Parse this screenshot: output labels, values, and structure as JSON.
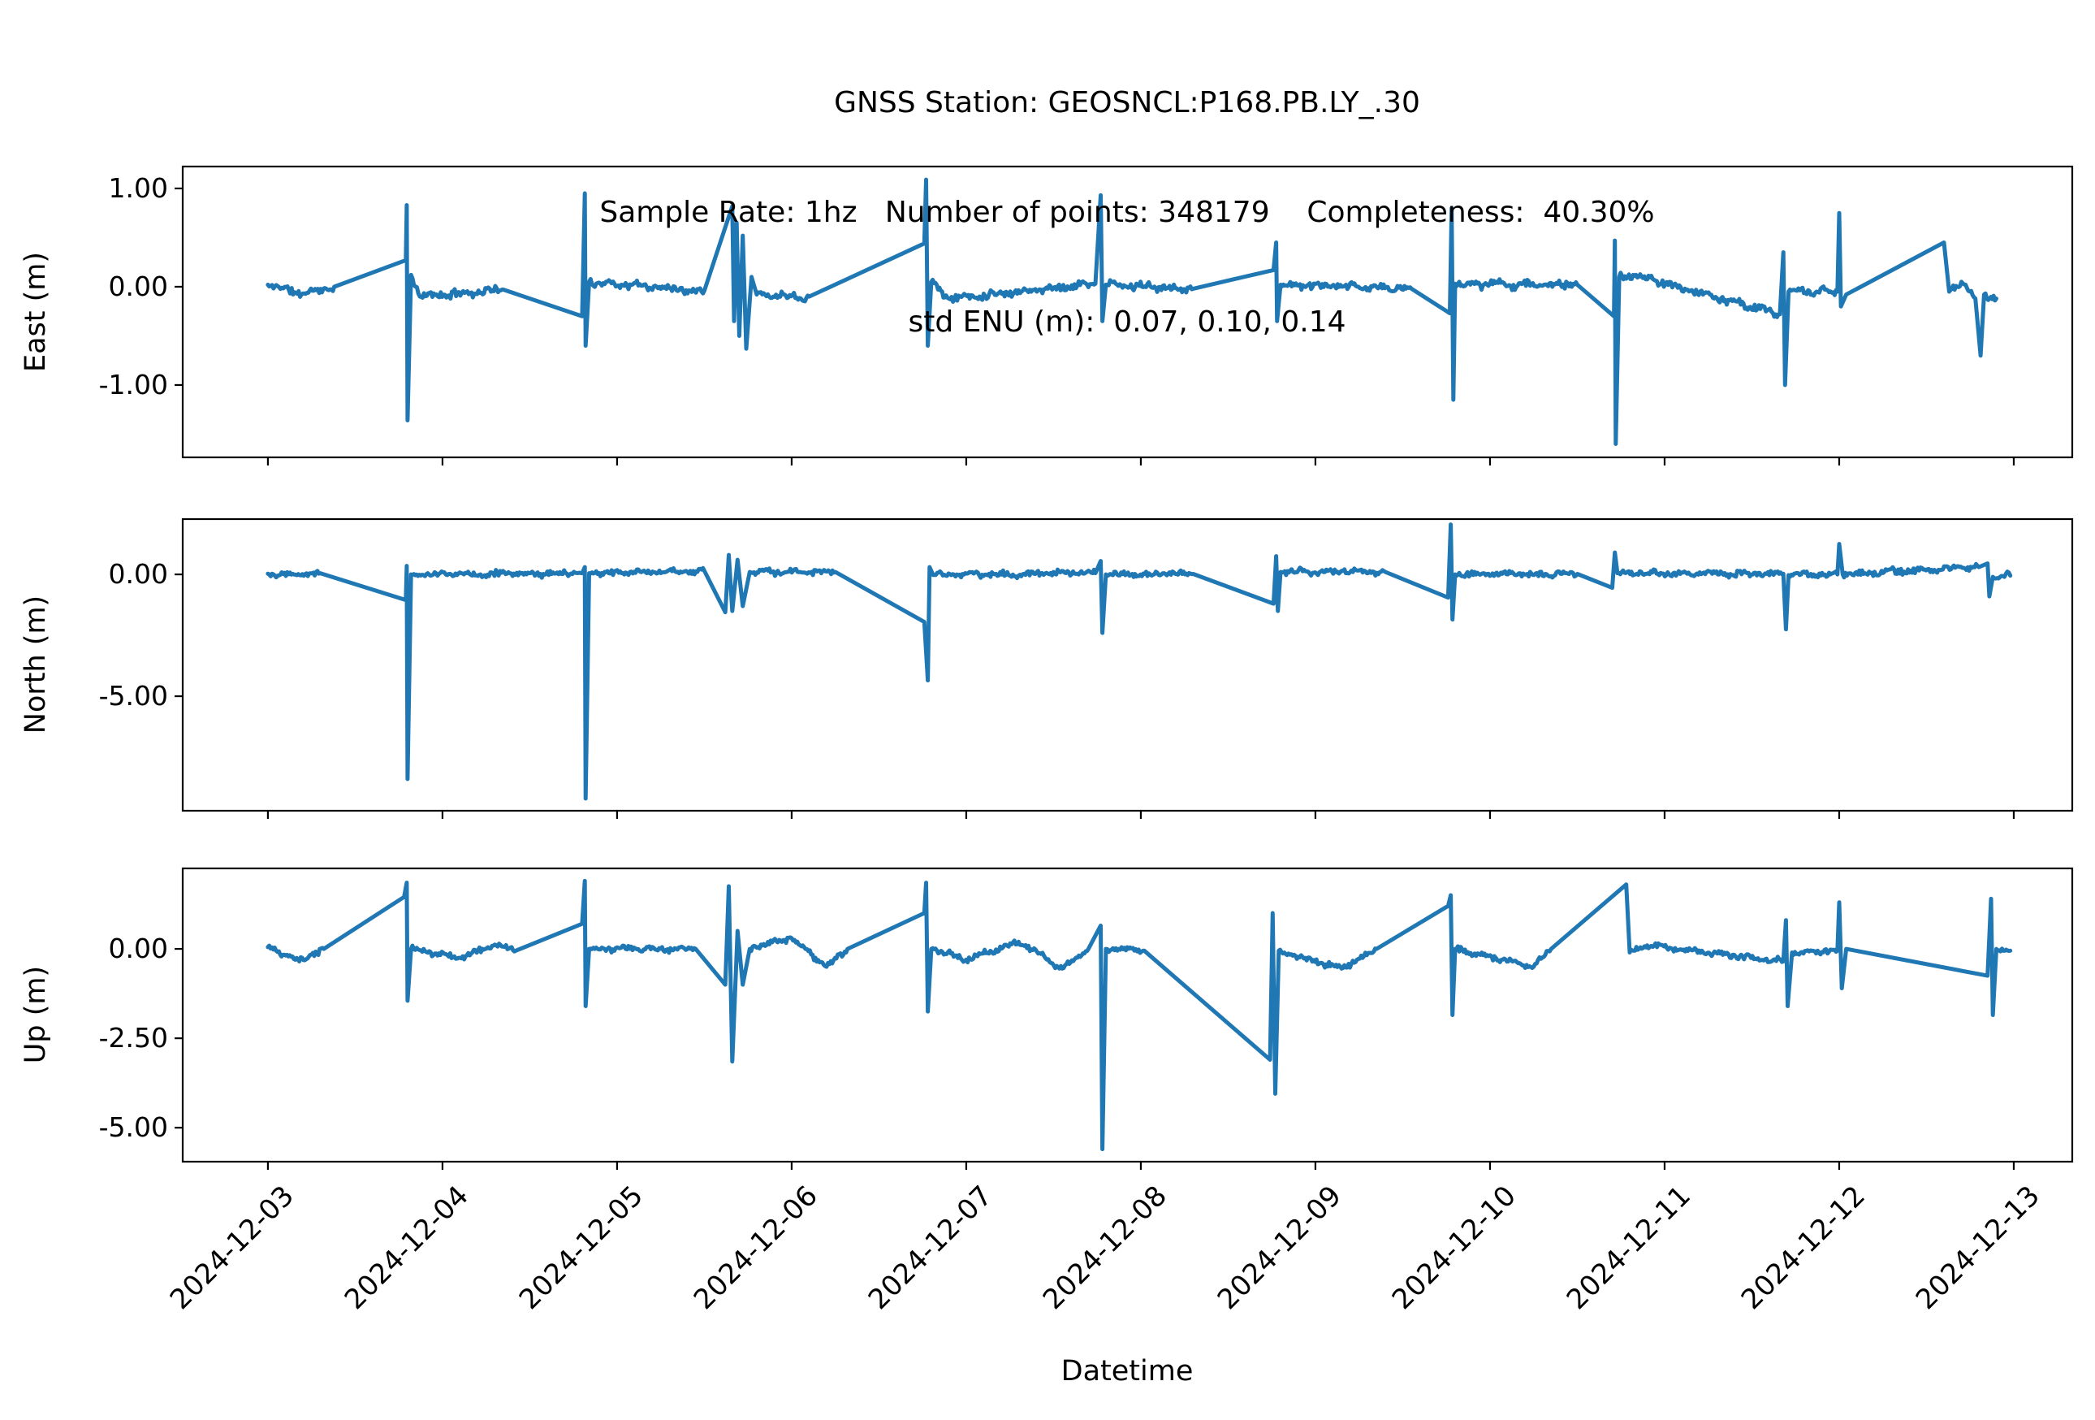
{
  "title": {
    "line1": "GNSS Station: GEOSNCL:P168.PB.LY_.30",
    "line2": "Sample Rate: 1hz   Number of points: 348179    Completeness:  40.30%",
    "line3": "std ENU (m):  0.07, 0.10, 0.14"
  },
  "xaxis": {
    "label": "Datetime"
  },
  "colors": {
    "line": "#1f77b4",
    "text": "#000000",
    "background": "#ffffff"
  },
  "chart_data": {
    "type": "line",
    "station": "GEOSNCL:P168.PB.LY_.30",
    "sample_rate": "1hz",
    "number_of_points": 348179,
    "completeness_percent": 40.3,
    "std_enu_m": [
      0.07,
      0.1,
      0.14
    ],
    "x_unit": "days since 2024-12-03 00:00",
    "xlim_days": [
      -0.488,
      10.335
    ],
    "x_tick_positions_days": [
      0,
      1,
      2,
      3,
      4,
      5,
      6,
      7,
      8,
      9,
      10
    ],
    "x_tick_labels": [
      "2024-12-03",
      "2024-12-04",
      "2024-12-05",
      "2024-12-06",
      "2024-12-07",
      "2024-12-08",
      "2024-12-09",
      "2024-12-10",
      "2024-12-11",
      "2024-12-12",
      "2024-12-13"
    ],
    "grid": false,
    "legend": null,
    "subplots": [
      {
        "name": "East",
        "ylabel": "East (m)",
        "ylim": [
          -1.736,
          1.223
        ],
        "yticks": [
          {
            "value": 1.0,
            "label": "1.00"
          },
          {
            "value": 0.0,
            "label": "0.00"
          },
          {
            "value": -1.0,
            "label": "-1.00"
          }
        ],
        "noise_amp_m": 0.045,
        "seed": 11,
        "points_day_value": [
          [
            0.0,
            0.02
          ],
          [
            0.2,
            -0.07,
            1
          ],
          [
            0.38,
            0.0,
            1
          ],
          [
            0.79,
            0.27
          ],
          [
            0.795,
            0.83
          ],
          [
            0.8,
            -1.36
          ],
          [
            0.82,
            0.12
          ],
          [
            0.87,
            -0.1,
            1
          ],
          [
            1.35,
            -0.03,
            1
          ],
          [
            1.8,
            -0.3
          ],
          [
            1.815,
            0.95
          ],
          [
            1.82,
            -0.6
          ],
          [
            1.84,
            0.05
          ],
          [
            2.5,
            -0.04,
            1
          ],
          [
            2.66,
            0.82
          ],
          [
            2.67,
            -0.35
          ],
          [
            2.685,
            0.65
          ],
          [
            2.7,
            -0.5
          ],
          [
            2.72,
            0.52
          ],
          [
            2.74,
            -0.63
          ],
          [
            2.77,
            0.1
          ],
          [
            2.8,
            -0.08
          ],
          [
            3.1,
            -0.1,
            1
          ],
          [
            3.76,
            0.44
          ],
          [
            3.77,
            1.09
          ],
          [
            3.78,
            -0.6
          ],
          [
            3.8,
            0.05
          ],
          [
            3.9,
            -0.12,
            1
          ],
          [
            4.74,
            0.03,
            1
          ],
          [
            4.77,
            0.93
          ],
          [
            4.78,
            -0.35
          ],
          [
            4.8,
            0.02
          ],
          [
            5.3,
            -0.02,
            1
          ],
          [
            5.76,
            0.17
          ],
          [
            5.775,
            0.45
          ],
          [
            5.78,
            -0.35
          ],
          [
            5.8,
            0.02
          ],
          [
            6.55,
            -0.02,
            1
          ],
          [
            6.77,
            -0.27
          ],
          [
            6.78,
            0.8
          ],
          [
            6.79,
            -1.15
          ],
          [
            6.8,
            0.03
          ],
          [
            7.5,
            0.02,
            1
          ],
          [
            7.71,
            -0.3
          ],
          [
            7.715,
            0.47
          ],
          [
            7.72,
            -1.6
          ],
          [
            7.74,
            0.1
          ],
          [
            7.82,
            0.12,
            1
          ],
          [
            8.66,
            -0.28,
            1
          ],
          [
            8.68,
            0.35
          ],
          [
            8.69,
            -1.0
          ],
          [
            8.71,
            -0.05
          ],
          [
            8.99,
            -0.05,
            1
          ],
          [
            9.0,
            0.75
          ],
          [
            9.01,
            -0.2
          ],
          [
            9.04,
            -0.08
          ],
          [
            9.6,
            0.45
          ],
          [
            9.63,
            -0.05
          ],
          [
            9.7,
            0.05,
            1
          ],
          [
            9.78,
            -0.12,
            1
          ],
          [
            9.81,
            -0.7
          ],
          [
            9.83,
            -0.08
          ],
          [
            9.9,
            -0.12,
            1
          ]
        ]
      },
      {
        "name": "North",
        "ylabel": "North (m)",
        "ylim": [
          -9.7,
          2.27
        ],
        "yticks": [
          {
            "value": 0.0,
            "label": "0.00"
          },
          {
            "value": -5.0,
            "label": "-5.00"
          }
        ],
        "noise_amp_m": 0.14,
        "seed": 22,
        "points_day_value": [
          [
            0.0,
            0.03
          ],
          [
            0.3,
            0.05,
            1
          ],
          [
            0.79,
            -1.05
          ],
          [
            0.795,
            0.35
          ],
          [
            0.8,
            -8.4
          ],
          [
            0.82,
            0.0
          ],
          [
            1.8,
            0.05,
            1
          ],
          [
            1.815,
            0.3
          ],
          [
            1.82,
            -9.2
          ],
          [
            1.84,
            0.05
          ],
          [
            2.5,
            0.15,
            1
          ],
          [
            2.62,
            -1.55
          ],
          [
            2.64,
            0.8
          ],
          [
            2.66,
            -1.5
          ],
          [
            2.69,
            0.6
          ],
          [
            2.72,
            -1.3
          ],
          [
            2.76,
            0.1
          ],
          [
            3.25,
            0.1,
            1
          ],
          [
            3.76,
            -1.95
          ],
          [
            3.78,
            -4.35
          ],
          [
            3.79,
            0.3
          ],
          [
            3.81,
            -0.02
          ],
          [
            4.74,
            0.05,
            1
          ],
          [
            4.77,
            0.55
          ],
          [
            4.78,
            -2.4
          ],
          [
            4.8,
            0.0
          ],
          [
            5.3,
            0.02,
            1
          ],
          [
            5.76,
            -1.2
          ],
          [
            5.775,
            0.75
          ],
          [
            5.785,
            -1.5
          ],
          [
            5.8,
            0.1
          ],
          [
            6.15,
            0.15,
            1
          ],
          [
            6.4,
            0.1,
            1
          ],
          [
            6.76,
            -0.95
          ],
          [
            6.775,
            2.05
          ],
          [
            6.785,
            -1.85
          ],
          [
            6.8,
            0.0
          ],
          [
            7.5,
            0.02,
            1
          ],
          [
            7.7,
            -0.55
          ],
          [
            7.715,
            0.9
          ],
          [
            7.73,
            0.05
          ],
          [
            8.68,
            0.03,
            1
          ],
          [
            8.695,
            -2.25
          ],
          [
            8.71,
            -0.03
          ],
          [
            8.99,
            0.0,
            1
          ],
          [
            9.0,
            1.25
          ],
          [
            9.02,
            0.0
          ],
          [
            9.8,
            0.3,
            1
          ],
          [
            9.85,
            0.45
          ],
          [
            9.86,
            -0.9
          ],
          [
            9.88,
            -0.1
          ],
          [
            9.98,
            -0.05,
            1
          ]
        ]
      },
      {
        "name": "Up",
        "ylabel": "Up (m)",
        "ylim": [
          -5.95,
          2.25
        ],
        "yticks": [
          {
            "value": 0.0,
            "label": "0.00"
          },
          {
            "value": -2.5,
            "label": "-2.50"
          },
          {
            "value": -5.0,
            "label": "-5.00"
          }
        ],
        "noise_amp_m": 0.09,
        "seed": 33,
        "points_day_value": [
          [
            0.0,
            0.05
          ],
          [
            0.18,
            -0.35,
            1
          ],
          [
            0.32,
            0.0,
            1
          ],
          [
            0.78,
            1.45
          ],
          [
            0.795,
            1.85
          ],
          [
            0.8,
            -1.45
          ],
          [
            0.82,
            0.0
          ],
          [
            1.1,
            -0.25,
            1
          ],
          [
            1.3,
            0.12,
            1
          ],
          [
            1.42,
            -0.05,
            1
          ],
          [
            1.8,
            0.7
          ],
          [
            1.815,
            1.9
          ],
          [
            1.82,
            -1.6
          ],
          [
            1.84,
            0.0
          ],
          [
            2.45,
            0.0,
            1
          ],
          [
            2.62,
            -1.0
          ],
          [
            2.64,
            1.75
          ],
          [
            2.66,
            -3.15
          ],
          [
            2.69,
            0.5
          ],
          [
            2.72,
            -1.0
          ],
          [
            2.76,
            0.0
          ],
          [
            3.0,
            0.3,
            1
          ],
          [
            3.2,
            -0.5,
            1
          ],
          [
            3.32,
            0.0,
            1
          ],
          [
            3.76,
            1.0
          ],
          [
            3.77,
            1.85
          ],
          [
            3.78,
            -1.75
          ],
          [
            3.8,
            0.0
          ],
          [
            4.0,
            -0.3,
            1
          ],
          [
            4.3,
            0.2,
            1
          ],
          [
            4.55,
            -0.55,
            1
          ],
          [
            4.7,
            0.0,
            1
          ],
          [
            4.77,
            0.65
          ],
          [
            4.78,
            -5.6
          ],
          [
            4.8,
            0.0
          ],
          [
            5.02,
            -0.05,
            1
          ],
          [
            5.74,
            -3.1
          ],
          [
            5.755,
            1.0
          ],
          [
            5.77,
            -4.05
          ],
          [
            5.79,
            -0.05
          ],
          [
            6.15,
            -0.55,
            1
          ],
          [
            6.35,
            0.0,
            1
          ],
          [
            6.76,
            1.2
          ],
          [
            6.775,
            1.5
          ],
          [
            6.785,
            -1.85
          ],
          [
            6.8,
            0.0
          ],
          [
            7.25,
            -0.5,
            1
          ],
          [
            7.35,
            0.0,
            1
          ],
          [
            7.78,
            1.8
          ],
          [
            7.8,
            -0.1
          ],
          [
            7.9,
            0.1,
            1
          ],
          [
            8.68,
            -0.35,
            1
          ],
          [
            8.695,
            0.8
          ],
          [
            8.705,
            -1.6
          ],
          [
            8.73,
            -0.1
          ],
          [
            8.99,
            -0.05,
            1
          ],
          [
            9.0,
            1.3
          ],
          [
            9.015,
            -1.1
          ],
          [
            9.04,
            0.0
          ],
          [
            9.85,
            -0.75
          ],
          [
            9.87,
            1.4
          ],
          [
            9.88,
            -1.85
          ],
          [
            9.9,
            0.0
          ],
          [
            9.98,
            -0.05,
            1
          ]
        ]
      }
    ]
  }
}
